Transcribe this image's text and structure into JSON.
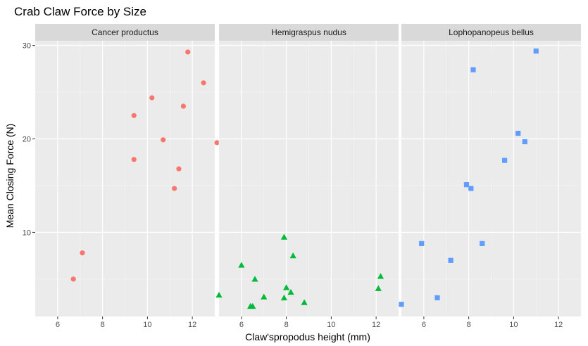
{
  "chart_data": {
    "type": "scatter",
    "title": "Crab Claw Force by Size",
    "xlabel": "Claw'spropodus height (mm)",
    "ylabel": "Mean Closing Force (N)",
    "xlim": [
      5,
      13
    ],
    "ylim": [
      1,
      30.5
    ],
    "x_ticks": [
      6,
      8,
      10,
      12
    ],
    "y_ticks": [
      10,
      20,
      30
    ],
    "grid": true,
    "legend": "none",
    "panels": [
      {
        "name": "Cancer productus",
        "color": "#F8766D",
        "shape": "circle",
        "points": [
          {
            "x": 6.7,
            "y": 5.0
          },
          {
            "x": 7.1,
            "y": 7.8
          },
          {
            "x": 9.4,
            "y": 22.5
          },
          {
            "x": 9.4,
            "y": 17.8
          },
          {
            "x": 10.2,
            "y": 24.4
          },
          {
            "x": 10.7,
            "y": 19.9
          },
          {
            "x": 11.2,
            "y": 14.7
          },
          {
            "x": 11.4,
            "y": 16.8
          },
          {
            "x": 11.6,
            "y": 23.5
          },
          {
            "x": 11.8,
            "y": 29.3
          },
          {
            "x": 12.5,
            "y": 26.0
          },
          {
            "x": 13.1,
            "y": 19.6
          }
        ]
      },
      {
        "name": "Hemigraspus nudus",
        "color": "#00BA38",
        "shape": "triangle",
        "points": [
          {
            "x": 5.0,
            "y": 3.3
          },
          {
            "x": 6.0,
            "y": 6.5
          },
          {
            "x": 6.4,
            "y": 2.1
          },
          {
            "x": 6.5,
            "y": 2.1
          },
          {
            "x": 6.6,
            "y": 5.0
          },
          {
            "x": 7.0,
            "y": 3.1
          },
          {
            "x": 7.9,
            "y": 9.5
          },
          {
            "x": 7.9,
            "y": 3.0
          },
          {
            "x": 8.0,
            "y": 4.1
          },
          {
            "x": 8.2,
            "y": 3.6
          },
          {
            "x": 8.3,
            "y": 7.5
          },
          {
            "x": 8.8,
            "y": 2.5
          },
          {
            "x": 12.1,
            "y": 4.0
          },
          {
            "x": 12.2,
            "y": 5.3
          }
        ]
      },
      {
        "name": "Lophopanopeus bellus",
        "color": "#619CFF",
        "shape": "square",
        "points": [
          {
            "x": 5.0,
            "y": 2.3
          },
          {
            "x": 5.9,
            "y": 8.8
          },
          {
            "x": 6.6,
            "y": 3.0
          },
          {
            "x": 7.2,
            "y": 7.0
          },
          {
            "x": 7.9,
            "y": 15.1
          },
          {
            "x": 8.1,
            "y": 14.7
          },
          {
            "x": 8.2,
            "y": 27.4
          },
          {
            "x": 8.6,
            "y": 8.8
          },
          {
            "x": 9.6,
            "y": 17.7
          },
          {
            "x": 10.2,
            "y": 20.6
          },
          {
            "x": 10.5,
            "y": 19.7
          },
          {
            "x": 11.0,
            "y": 29.4
          }
        ]
      }
    ]
  }
}
